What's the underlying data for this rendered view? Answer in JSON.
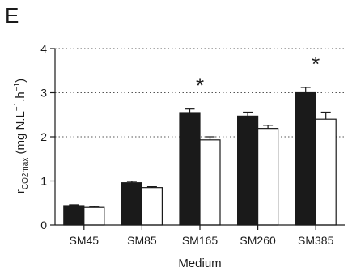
{
  "panel_label": "E",
  "chart_data": {
    "type": "bar",
    "title": "",
    "xlabel": "Medium",
    "ylabel": "r",
    "ylabel_sub": "CO2max",
    "ylabel_unit_open": " (mg N.L",
    "ylabel_sup1": "−1",
    "ylabel_mid": ".h",
    "ylabel_sup2": "−1",
    "ylabel_close": ")",
    "ylim": [
      0,
      4
    ],
    "yticks": [
      "0",
      "1",
      "2",
      "3",
      "4"
    ],
    "grid": "dotted horizontal",
    "categories": [
      "SM45",
      "SM85",
      "SM165",
      "SM260",
      "SM385"
    ],
    "series": [
      {
        "values": [
          0.44,
          0.96,
          2.55,
          2.47,
          3.0
        ],
        "errors": [
          0.02,
          0.03,
          0.08,
          0.09,
          0.12
        ],
        "fill": "#1a1a1a"
      },
      {
        "values": [
          0.4,
          0.85,
          1.93,
          2.19,
          2.4
        ],
        "errors": [
          0.02,
          0.02,
          0.07,
          0.07,
          0.16
        ],
        "fill": "#ffffff"
      }
    ],
    "significance": [
      "",
      "",
      "*",
      "",
      "*"
    ]
  }
}
